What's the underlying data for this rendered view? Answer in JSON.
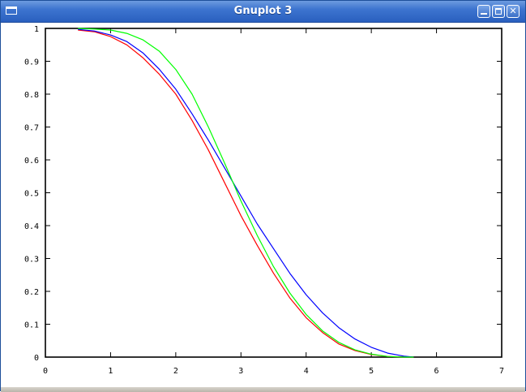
{
  "window": {
    "title": "Gnuplot 3",
    "icon": "window-menu-icon",
    "buttons": [
      "minimize-icon",
      "maximize-icon",
      "close-icon"
    ],
    "close_glyph": "✕"
  },
  "chart_data": {
    "type": "line",
    "xlim": [
      0,
      7
    ],
    "ylim": [
      0,
      1
    ],
    "x_ticks": [
      "0",
      "1",
      "2",
      "3",
      "4",
      "5",
      "6",
      "7"
    ],
    "y_ticks": [
      "0",
      "0.1",
      "0.2",
      "0.3",
      "0.4",
      "0.5",
      "0.6",
      "0.7",
      "0.8",
      "0.9",
      "1"
    ],
    "grid": false,
    "legend": "none",
    "series": [
      {
        "color": "#ff0000",
        "x": [
          0.5,
          0.75,
          1.0,
          1.25,
          1.5,
          1.75,
          2.0,
          2.25,
          2.5,
          2.75,
          3.0,
          3.25,
          3.5,
          3.75,
          4.0,
          4.25,
          4.5,
          4.75,
          5.0,
          5.25,
          5.5,
          5.65
        ],
        "y": [
          0.995,
          0.99,
          0.975,
          0.95,
          0.91,
          0.86,
          0.8,
          0.72,
          0.63,
          0.53,
          0.43,
          0.34,
          0.255,
          0.18,
          0.12,
          0.075,
          0.04,
          0.02,
          0.008,
          0.002,
          0.0,
          0.0
        ]
      },
      {
        "color": "#0000ff",
        "x": [
          0.5,
          0.75,
          1.0,
          1.25,
          1.5,
          1.75,
          2.0,
          2.25,
          2.5,
          2.75,
          3.0,
          3.25,
          3.5,
          3.75,
          4.0,
          4.25,
          4.5,
          4.75,
          5.0,
          5.25,
          5.5,
          5.65
        ],
        "y": [
          0.997,
          0.992,
          0.98,
          0.96,
          0.925,
          0.875,
          0.815,
          0.74,
          0.66,
          0.575,
          0.49,
          0.405,
          0.33,
          0.255,
          0.19,
          0.135,
          0.09,
          0.055,
          0.03,
          0.012,
          0.003,
          0.0
        ]
      },
      {
        "color": "#00ff00",
        "x": [
          0.5,
          0.75,
          1.0,
          1.25,
          1.5,
          1.75,
          2.0,
          2.25,
          2.5,
          2.75,
          3.0,
          3.25,
          3.5,
          3.75,
          4.0,
          4.25,
          4.5,
          4.75,
          5.0,
          5.25,
          5.5,
          5.65
        ],
        "y": [
          1.0,
          0.998,
          0.995,
          0.985,
          0.965,
          0.93,
          0.875,
          0.8,
          0.7,
          0.59,
          0.475,
          0.37,
          0.275,
          0.195,
          0.13,
          0.08,
          0.045,
          0.022,
          0.009,
          0.002,
          0.0,
          0.0
        ]
      }
    ]
  }
}
